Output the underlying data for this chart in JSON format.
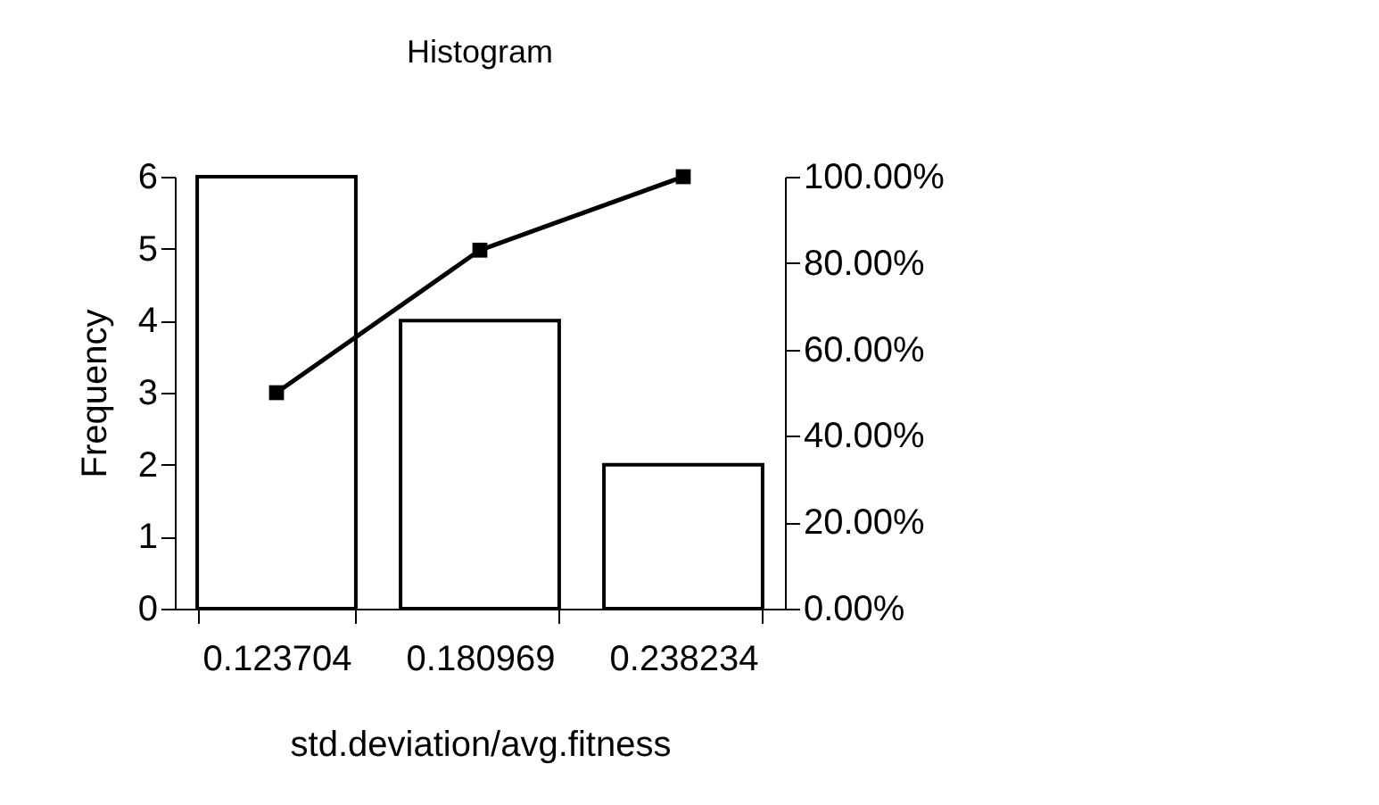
{
  "chart_data": {
    "type": "bar",
    "title": "Histogram",
    "xlabel": "std.deviation/avg.fitness",
    "ylabel": "Frequency",
    "categories": [
      "0.123704",
      "0.180969",
      "0.238234"
    ],
    "series": [
      {
        "color": "#ffffff",
        "values": [
          6,
          4,
          2
        ]
      },
      {
        "type": "line",
        "axis": "y2",
        "color": "#000000",
        "values": [
          50,
          83,
          100
        ]
      }
    ],
    "ylim": [
      0,
      6
    ],
    "yticks": [
      0,
      1,
      2,
      3,
      4,
      5,
      6
    ],
    "y2lim": [
      0,
      100
    ],
    "y2ticks": [
      {
        "value": 0,
        "label": "0.00%"
      },
      {
        "value": 20,
        "label": "20.00%"
      },
      {
        "value": 40,
        "label": "40.00%"
      },
      {
        "value": 60,
        "label": "60.00%"
      },
      {
        "value": 80,
        "label": "80.00%"
      },
      {
        "value": 100,
        "label": "100.00%"
      }
    ],
    "marker": "square",
    "line_style": "solid"
  }
}
